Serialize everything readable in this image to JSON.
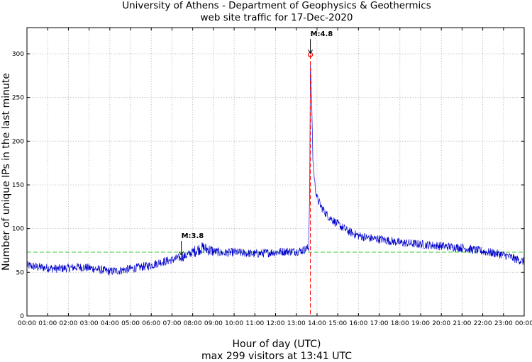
{
  "chart_data": {
    "type": "line",
    "title": "University of Athens - Department of Geophysics & Geothermics",
    "subtitle": "web site traffic for 17-Dec-2020",
    "xlabel": "Hour of day (UTC)",
    "ylabel": "Number of unique IPs in the last minute",
    "footer": "max 299 visitors at 13:41 UTC",
    "xlim": [
      0,
      24
    ],
    "ylim": [
      0,
      330
    ],
    "x_ticks": [
      "00:00",
      "01:00",
      "02:00",
      "03:00",
      "04:00",
      "05:00",
      "06:00",
      "07:00",
      "08:00",
      "09:00",
      "10:00",
      "11:00",
      "12:00",
      "13:00",
      "14:00",
      "15:00",
      "16:00",
      "17:00",
      "18:00",
      "19:00",
      "20:00",
      "21:00",
      "22:00",
      "23:00",
      "00:00"
    ],
    "y_ticks": [
      "0",
      "50",
      "100",
      "150",
      "200",
      "250",
      "300"
    ],
    "y_tick_values": [
      0,
      50,
      100,
      150,
      200,
      250,
      300
    ],
    "grid": true,
    "mean_line": {
      "y": 73,
      "color": "#33cc33"
    },
    "series": [
      {
        "color": "#0000cc",
        "hours": [
          0,
          0.5,
          1,
          1.5,
          2,
          2.5,
          3,
          3.5,
          4,
          4.5,
          5,
          5.5,
          6,
          6.5,
          7,
          7.25,
          7.5,
          7.75,
          8,
          8.25,
          8.5,
          8.75,
          9,
          9.5,
          10,
          10.5,
          11,
          11.5,
          12,
          12.5,
          13,
          13.3,
          13.6,
          13.65,
          13.68,
          13.7,
          13.75,
          13.8,
          13.9,
          14,
          14.2,
          14.5,
          15,
          15.5,
          16,
          16.5,
          17,
          17.5,
          18,
          18.5,
          19,
          19.5,
          20,
          20.5,
          21,
          21.5,
          22,
          22.5,
          23,
          23.5,
          24
        ],
        "visitors": [
          58,
          56,
          55,
          54,
          55,
          56,
          55,
          53,
          51,
          52,
          54,
          56,
          58,
          62,
          64,
          66,
          67,
          70,
          73,
          76,
          78,
          76,
          74,
          72,
          73,
          72,
          71,
          72,
          73,
          74,
          74,
          75,
          78,
          150,
          290,
          275,
          240,
          180,
          150,
          135,
          125,
          115,
          105,
          97,
          92,
          89,
          88,
          86,
          84,
          83,
          82,
          81,
          80,
          79,
          78,
          76,
          74,
          72,
          70,
          66,
          62
        ]
      }
    ],
    "peak": {
      "hour": 13.68,
      "value": 299,
      "color": "#ff0000"
    },
    "annotations": [
      {
        "label": "M:3.8",
        "hour": 7.45,
        "value": 68
      },
      {
        "label": "M:4.8",
        "hour": 13.68,
        "value": 299
      }
    ]
  }
}
